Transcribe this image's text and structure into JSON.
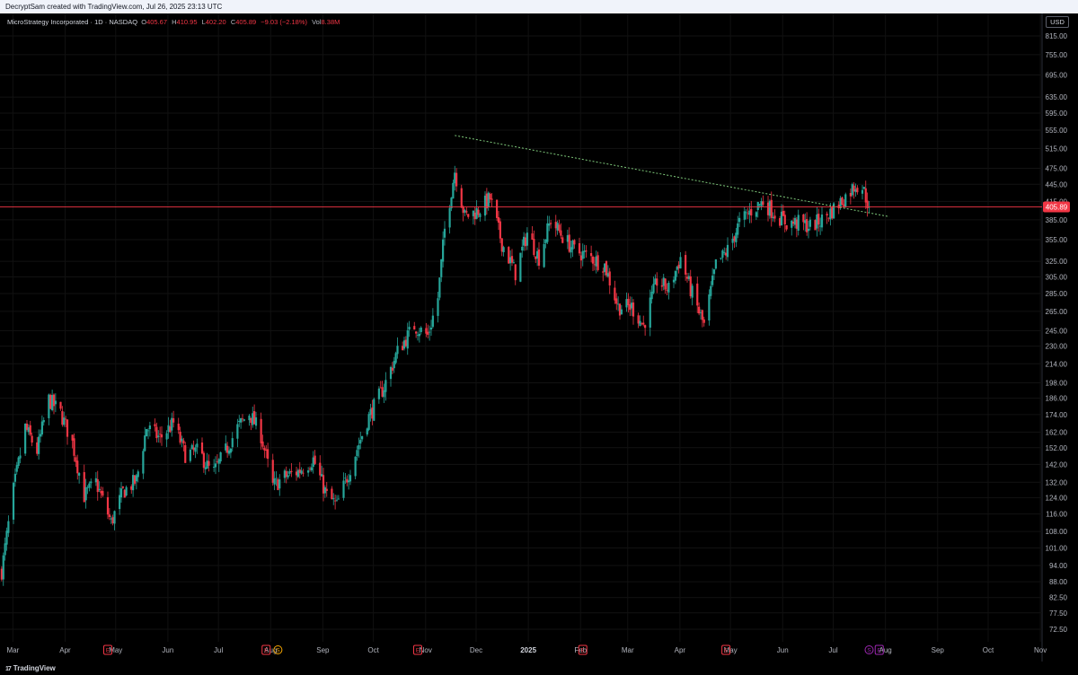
{
  "header": {
    "attribution": "DecryptSam created with TradingView.com, Jul 26, 2025 23:13 UTC"
  },
  "legend": {
    "symbol": "MicroStrategy Incorporated · 1D · NASDAQ",
    "open_label": "O",
    "open": "405.67",
    "high_label": "H",
    "high": "410.95",
    "low_label": "L",
    "low": "402.20",
    "close_label": "C",
    "close": "405.89",
    "change": "−9.03 (−2.18%)",
    "vol_label": "Vol",
    "vol": "8.38M"
  },
  "currency_button": "USD",
  "footer": {
    "brand": "TradingView",
    "logo": "17"
  },
  "colors": {
    "up": "#26a69a",
    "down": "#f23645",
    "price_line": "#f23645",
    "trendline": "#7ec87a",
    "event_earnings": "#f23645",
    "event_dividend": "#f7a600",
    "event_split": "#9c27b0"
  },
  "chart_data": {
    "type": "candlestick",
    "scale": "log",
    "y_ticks": [
      "815.00",
      "755.00",
      "695.00",
      "635.00",
      "595.00",
      "555.00",
      "515.00",
      "475.00",
      "445.00",
      "415.00",
      "385.00",
      "355.00",
      "325.00",
      "305.00",
      "285.00",
      "265.00",
      "245.00",
      "230.00",
      "214.00",
      "198.00",
      "186.00",
      "174.00",
      "162.00",
      "152.00",
      "142.00",
      "132.00",
      "124.00",
      "116.00",
      "108.00",
      "101.00",
      "94.00",
      "88.00",
      "82.50",
      "77.50",
      "72.50"
    ],
    "x_labels": [
      "Mar",
      "Apr",
      "May",
      "Jun",
      "Jul",
      "Aug",
      "Sep",
      "Oct",
      "Nov",
      "Dec",
      "2025",
      "Feb",
      "Mar",
      "Apr",
      "May",
      "Jun",
      "Jul",
      "Aug",
      "Sep",
      "Oct",
      "Nov"
    ],
    "last_price": "405.89",
    "last_price_value": 405.89,
    "trendline": {
      "from": [
        "2024-11-21",
        543
      ],
      "to": [
        "2025-08-06",
        390
      ]
    },
    "events": [
      {
        "type": "E",
        "date": "2024-04-29"
      },
      {
        "type": "E",
        "date": "2024-08-01"
      },
      {
        "type": "S",
        "date": "2024-08-08"
      },
      {
        "type": "E",
        "date": "2024-10-30"
      },
      {
        "type": "E",
        "date": "2025-02-05"
      },
      {
        "type": "E",
        "date": "2025-05-01"
      },
      {
        "type": "S",
        "date": "2025-07-25"
      },
      {
        "type": "E",
        "date": "2025-07-31"
      }
    ],
    "anchors": [
      [
        "2024-02-26",
        92
      ],
      [
        "2024-03-04",
        128
      ],
      [
        "2024-03-11",
        165
      ],
      [
        "2024-03-18",
        150
      ],
      [
        "2024-03-25",
        185
      ],
      [
        "2024-04-01",
        175
      ],
      [
        "2024-04-08",
        155
      ],
      [
        "2024-04-15",
        125
      ],
      [
        "2024-04-22",
        132
      ],
      [
        "2024-05-01",
        112
      ],
      [
        "2024-05-08",
        127
      ],
      [
        "2024-05-16",
        133
      ],
      [
        "2024-05-22",
        165
      ],
      [
        "2024-05-30",
        158
      ],
      [
        "2024-06-07",
        168
      ],
      [
        "2024-06-14",
        148
      ],
      [
        "2024-06-22",
        150
      ],
      [
        "2024-06-30",
        136
      ],
      [
        "2024-07-08",
        150
      ],
      [
        "2024-07-15",
        165
      ],
      [
        "2024-07-22",
        175
      ],
      [
        "2024-07-29",
        160
      ],
      [
        "2024-08-05",
        130
      ],
      [
        "2024-08-12",
        135
      ],
      [
        "2024-08-20",
        138
      ],
      [
        "2024-08-29",
        145
      ],
      [
        "2024-09-06",
        125
      ],
      [
        "2024-09-12",
        120
      ],
      [
        "2024-09-20",
        140
      ],
      [
        "2024-09-30",
        170
      ],
      [
        "2024-10-10",
        195
      ],
      [
        "2024-10-18",
        225
      ],
      [
        "2024-10-28",
        250
      ],
      [
        "2024-11-05",
        240
      ],
      [
        "2024-11-11",
        280
      ],
      [
        "2024-11-15",
        370
      ],
      [
        "2024-11-21",
        470
      ],
      [
        "2024-11-27",
        390
      ],
      [
        "2024-12-05",
        400
      ],
      [
        "2024-12-12",
        420
      ],
      [
        "2024-12-19",
        350
      ],
      [
        "2024-12-27",
        310
      ],
      [
        "2025-01-03",
        365
      ],
      [
        "2025-01-10",
        330
      ],
      [
        "2025-01-17",
        385
      ],
      [
        "2025-01-24",
        360
      ],
      [
        "2025-01-31",
        340
      ],
      [
        "2025-02-10",
        330
      ],
      [
        "2025-02-18",
        320
      ],
      [
        "2025-02-26",
        270
      ],
      [
        "2025-03-06",
        270
      ],
      [
        "2025-03-13",
        250
      ],
      [
        "2025-03-21",
        300
      ],
      [
        "2025-03-28",
        290
      ],
      [
        "2025-04-04",
        330
      ],
      [
        "2025-04-10",
        290
      ],
      [
        "2025-04-18",
        250
      ],
      [
        "2025-04-25",
        320
      ],
      [
        "2025-05-02",
        340
      ],
      [
        "2025-05-09",
        380
      ],
      [
        "2025-05-16",
        400
      ],
      [
        "2025-05-23",
        415
      ],
      [
        "2025-05-30",
        395
      ],
      [
        "2025-06-06",
        380
      ],
      [
        "2025-06-13",
        380
      ],
      [
        "2025-06-20",
        375
      ],
      [
        "2025-06-27",
        385
      ],
      [
        "2025-07-03",
        400
      ],
      [
        "2025-07-10",
        420
      ],
      [
        "2025-07-17",
        445
      ],
      [
        "2025-07-21",
        440
      ],
      [
        "2025-07-25",
        405.89
      ]
    ]
  }
}
